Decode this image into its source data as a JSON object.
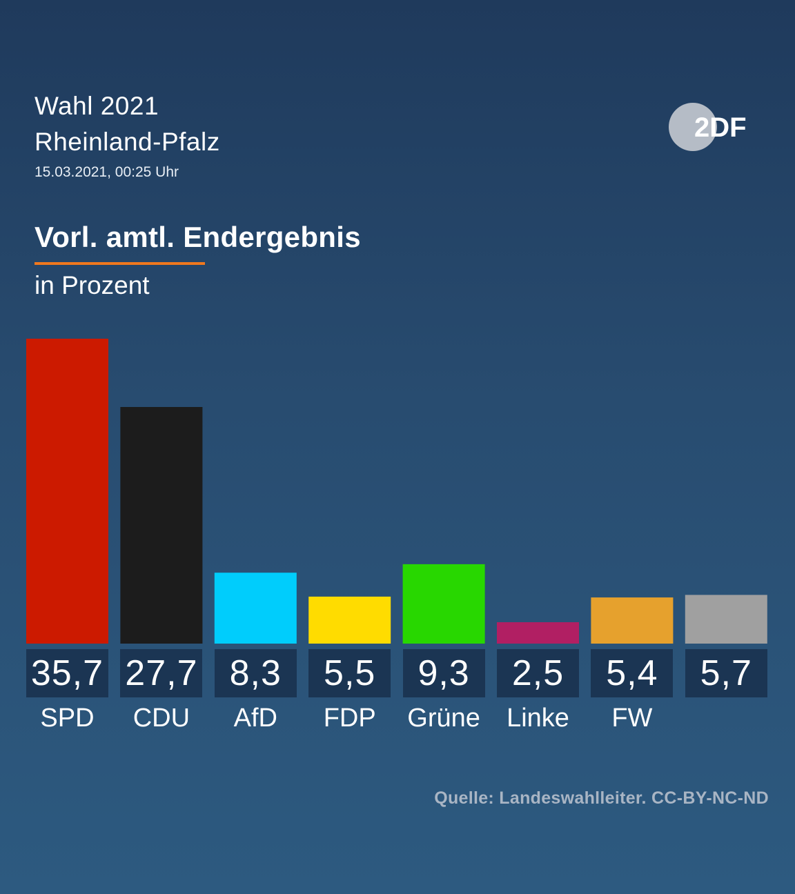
{
  "header": {
    "line1": "Wahl 2021",
    "line2": "Rheinland-Pfalz",
    "date": "15.03.2021, 00:25 Uhr"
  },
  "logo": {
    "text": "2DF",
    "circle_color": "#b5bcc6",
    "text_color": "#ffffff"
  },
  "result_title": "Vorl. amtl. Endergebnis",
  "underline_color": "#f0781e",
  "unit_label": "in Prozent",
  "source": "Quelle: Landeswahlleiter. CC-BY-NC-ND",
  "chart_data": {
    "type": "bar",
    "categories": [
      "SPD",
      "CDU",
      "AfD",
      "FDP",
      "Grüne",
      "Linke",
      "FW",
      ""
    ],
    "values": [
      35.7,
      27.7,
      8.3,
      5.5,
      9.3,
      2.5,
      5.4,
      5.7
    ],
    "value_labels": [
      "35,7",
      "27,7",
      "8,3",
      "5,5",
      "9,3",
      "2,5",
      "5,4",
      "5,7"
    ],
    "colors": [
      "#cc1a00",
      "#1c1c1c",
      "#00cdfc",
      "#ffdc00",
      "#28d700",
      "#b11f63",
      "#e6a12d",
      "#a0a0a0"
    ],
    "ylim": [
      0,
      35.7
    ],
    "grid": false,
    "legend": "none"
  }
}
